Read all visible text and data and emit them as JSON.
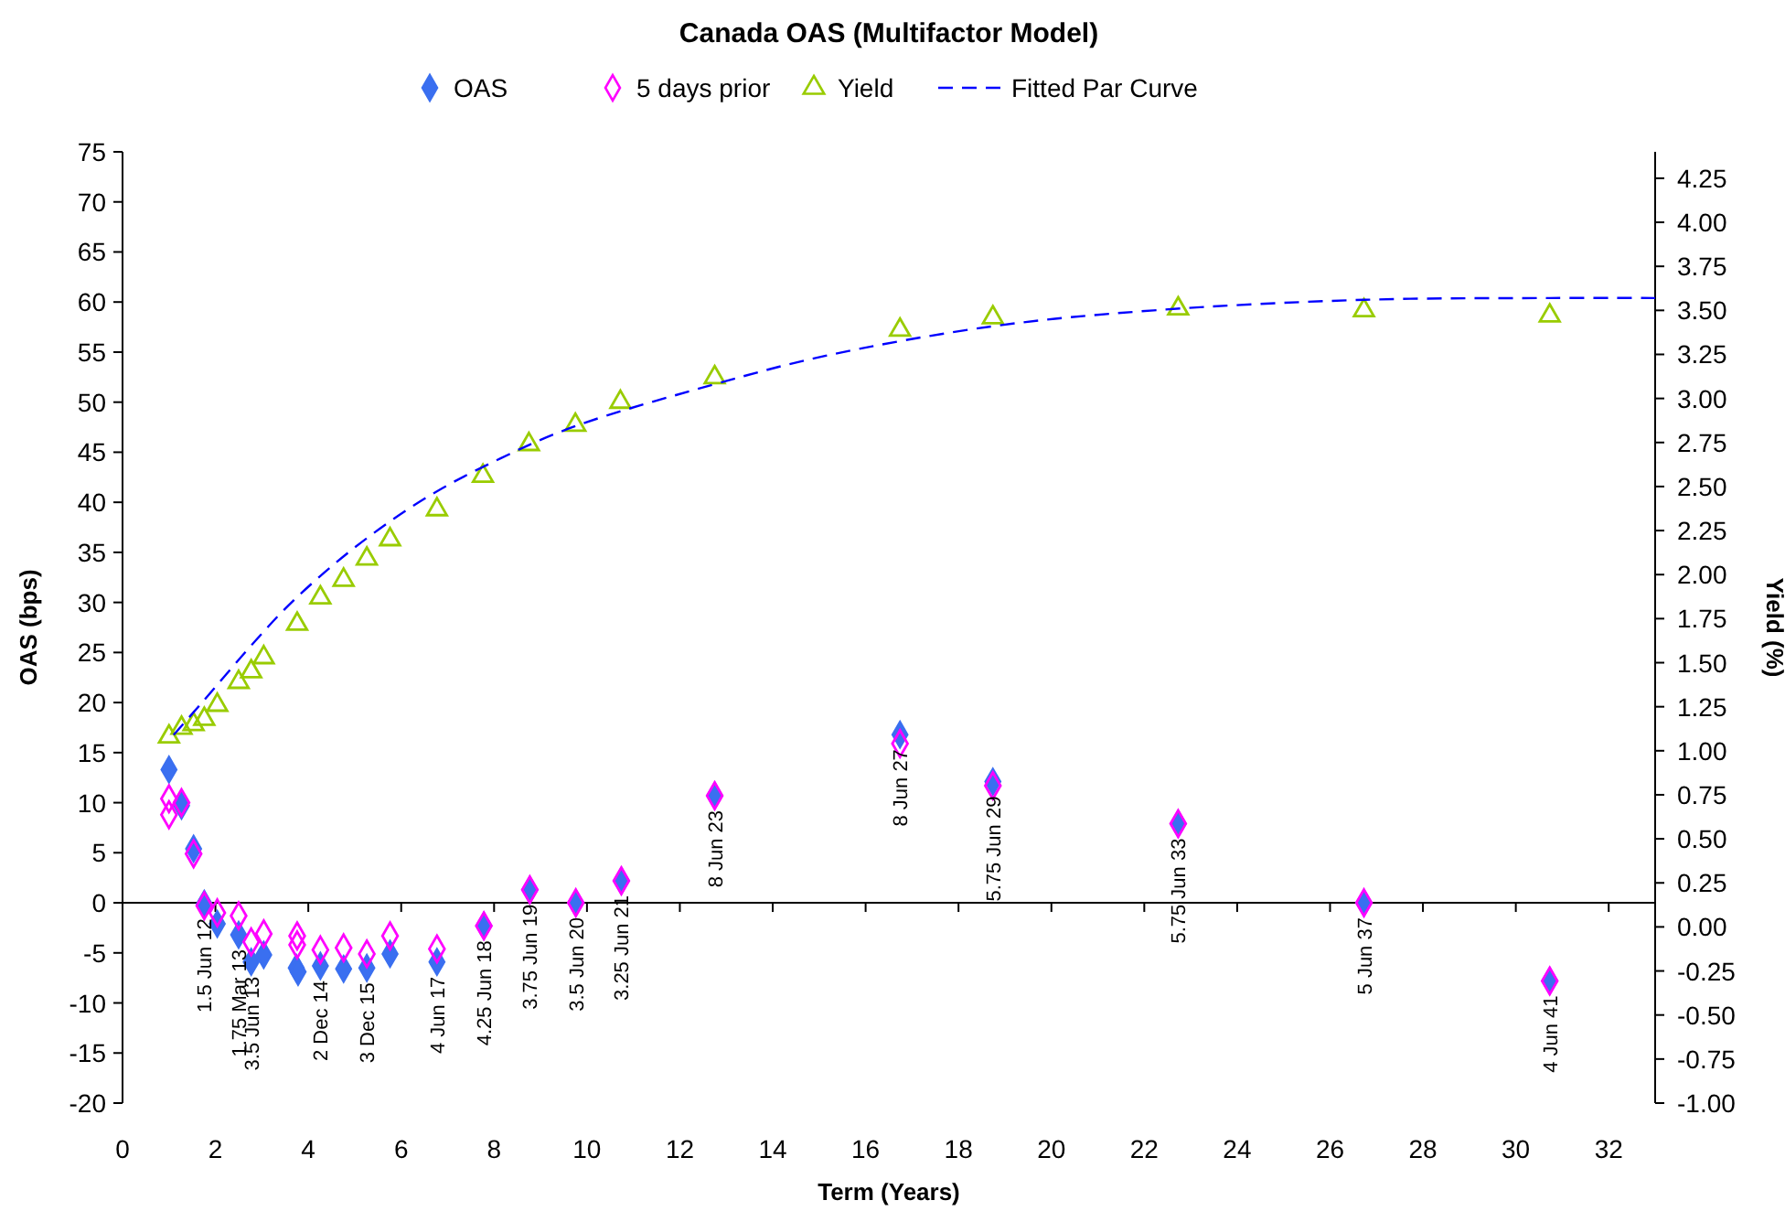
{
  "chart_data": {
    "type": "scatter",
    "title": "Canada OAS (Multifactor Model)",
    "xlabel": "Term (Years)",
    "ylabel": "OAS (bps)",
    "y2label": "Yield (%)",
    "xlim": [
      0,
      33
    ],
    "xticks": [
      0,
      2,
      4,
      6,
      8,
      10,
      12,
      14,
      16,
      18,
      20,
      22,
      24,
      26,
      28,
      30,
      32
    ],
    "ylim": [
      -20,
      75
    ],
    "yticks": [
      -20,
      -15,
      -10,
      -5,
      0,
      5,
      10,
      15,
      20,
      25,
      30,
      35,
      40,
      45,
      50,
      55,
      60,
      65,
      70,
      75
    ],
    "y2lim": [
      -1,
      4.4
    ],
    "y2ticks": [
      {
        "value": -1,
        "label": "-1.00"
      },
      {
        "value": -0.75,
        "label": "-0.75"
      },
      {
        "value": -0.5,
        "label": "-0.50"
      },
      {
        "value": -0.25,
        "label": "-0.25"
      },
      {
        "value": 0,
        "label": "0.00"
      },
      {
        "value": 0.25,
        "label": "0.25"
      },
      {
        "value": 0.5,
        "label": "0.50"
      },
      {
        "value": 0.75,
        "label": "0.75"
      },
      {
        "value": 1,
        "label": "1.00"
      },
      {
        "value": 1.25,
        "label": "1.25"
      },
      {
        "value": 1.5,
        "label": "1.50"
      },
      {
        "value": 1.75,
        "label": "1.75"
      },
      {
        "value": 2,
        "label": "2.00"
      },
      {
        "value": 2.25,
        "label": "2.25"
      },
      {
        "value": 2.5,
        "label": "2.50"
      },
      {
        "value": 2.75,
        "label": "2.75"
      },
      {
        "value": 3,
        "label": "3.00"
      },
      {
        "value": 3.25,
        "label": "3.25"
      },
      {
        "value": 3.5,
        "label": "3.50"
      },
      {
        "value": 3.75,
        "label": "3.75"
      },
      {
        "value": 4,
        "label": "4.00"
      },
      {
        "value": 4.25,
        "label": "4.25"
      }
    ],
    "legend": "top",
    "series": [
      {
        "name": "OAS",
        "marker": "diamond",
        "color": "#3a6ff0",
        "x": [
          1.0,
          1.27,
          1.53,
          1.76,
          2.04,
          2.5,
          2.77,
          3.04,
          3.74,
          3.78,
          4.26,
          4.76,
          5.26,
          5.76,
          6.77,
          7.78,
          8.77,
          9.76,
          10.74,
          12.75,
          16.74,
          18.74,
          22.73,
          26.73,
          30.73
        ],
        "values": [
          13.3,
          9.7,
          5.4,
          -0.1,
          -2.1,
          -3.2,
          -5.9,
          -5.2,
          -6.5,
          -6.9,
          -6.3,
          -6.6,
          -6.5,
          -5.1,
          -5.9,
          -2.3,
          1.3,
          0.0,
          2.2,
          10.7,
          16.8,
          12.1,
          7.9,
          0.0,
          -7.8
        ]
      },
      {
        "name": "5 days prior",
        "marker": "diamond",
        "color": "#ff00ff",
        "x": [
          1.0,
          1.0,
          1.27,
          1.53,
          1.76,
          2.04,
          2.5,
          2.77,
          3.04,
          3.76,
          3.76,
          4.26,
          4.76,
          5.26,
          5.76,
          6.77,
          7.78,
          8.77,
          9.76,
          10.74,
          12.75,
          16.74,
          18.74,
          22.73,
          26.73,
          30.73
        ],
        "values": [
          10.4,
          8.8,
          10.0,
          4.9,
          -0.3,
          -1.0,
          -1.3,
          -3.9,
          -3.1,
          -3.3,
          -4.2,
          -4.7,
          -4.5,
          -5.1,
          -3.3,
          -4.6,
          -2.3,
          1.3,
          0.0,
          2.2,
          10.7,
          15.9,
          11.7,
          7.9,
          0.0,
          -7.8
        ]
      },
      {
        "name": "Yield",
        "marker": "triangle",
        "axis": "y2",
        "color": "#99cc00",
        "x": [
          1.0,
          1.27,
          1.53,
          1.76,
          2.04,
          2.5,
          2.77,
          3.04,
          3.76,
          4.26,
          4.76,
          5.26,
          5.76,
          6.77,
          7.76,
          8.75,
          9.75,
          10.72,
          12.75,
          16.74,
          18.74,
          22.73,
          26.73,
          30.73
        ],
        "values": [
          1.09,
          1.14,
          1.16,
          1.19,
          1.27,
          1.4,
          1.46,
          1.54,
          1.73,
          1.88,
          1.98,
          2.1,
          2.21,
          2.38,
          2.57,
          2.75,
          2.86,
          2.99,
          3.13,
          3.4,
          3.47,
          3.52,
          3.51,
          3.48
        ]
      },
      {
        "name": "Fitted Par Curve",
        "type": "line",
        "marker": "none",
        "line_style": "dashed",
        "axis": "y2",
        "color": "#0000ff",
        "x": [
          1.1,
          1.7,
          2.88,
          3.67,
          4.98,
          6.56,
          8.14,
          9.72,
          12.74,
          15.1,
          18.74,
          22.2,
          26.73,
          30.73,
          33
        ],
        "values": [
          1.09,
          1.27,
          1.63,
          1.85,
          2.15,
          2.44,
          2.66,
          2.84,
          3.08,
          3.24,
          3.41,
          3.5,
          3.56,
          3.57,
          3.57
        ]
      }
    ],
    "annotations": [
      {
        "text": "1.5 Jun 12",
        "x": 1.76,
        "y": -0.1
      },
      {
        "text": "1.75 Mar 13",
        "x": 2.5,
        "y": -3.2
      },
      {
        "text": "3.5 Jun 13",
        "x": 2.77,
        "y": -5.9
      },
      {
        "text": "2 Dec 14",
        "x": 4.26,
        "y": -6.3
      },
      {
        "text": "3 Dec 15",
        "x": 5.26,
        "y": -6.5
      },
      {
        "text": "4 Jun 17",
        "x": 6.77,
        "y": -5.9
      },
      {
        "text": "4.25 Jun 18",
        "x": 7.78,
        "y": -2.3
      },
      {
        "text": "3.75 Jun 19",
        "x": 8.77,
        "y": 1.3
      },
      {
        "text": "3.5 Jun 20",
        "x": 9.76,
        "y": 0.0
      },
      {
        "text": "3.25 Jun 21",
        "x": 10.74,
        "y": 2.2
      },
      {
        "text": "8 Jun 23",
        "x": 12.75,
        "y": 10.7
      },
      {
        "text": "8 Jun 27",
        "x": 16.74,
        "y": 16.8
      },
      {
        "text": "5.75 Jun 29",
        "x": 18.74,
        "y": 12.1
      },
      {
        "text": "5.75 Jun 33",
        "x": 22.73,
        "y": 7.9
      },
      {
        "text": "5 Jun 37",
        "x": 26.73,
        "y": 0.0
      },
      {
        "text": "4 Jun 41",
        "x": 30.73,
        "y": -7.8
      }
    ]
  }
}
